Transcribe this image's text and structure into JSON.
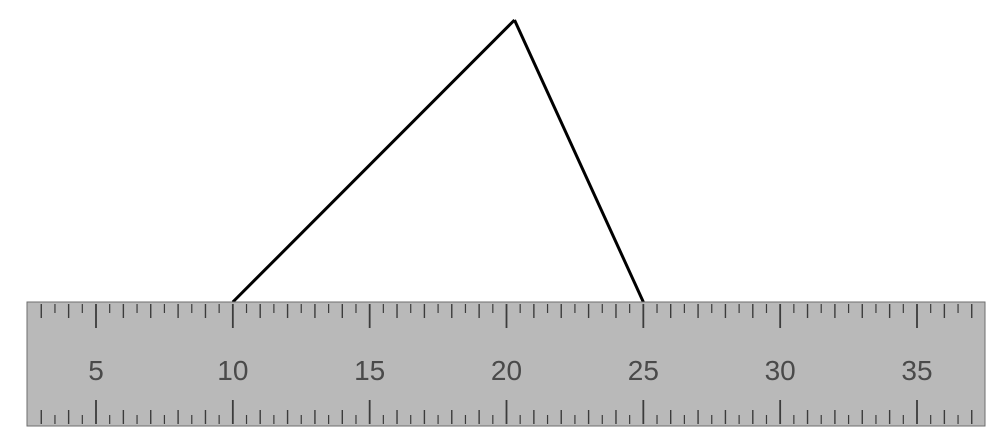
{
  "diagram": {
    "ruler": {
      "labels": [
        "5",
        "10",
        "15",
        "20",
        "25",
        "30",
        "35"
      ],
      "min_value": 0,
      "max_value": 37,
      "label_step": 5,
      "colors": {
        "face": "#b9b9b9",
        "border": "#6e6e6e",
        "tick": "#3c3c3c",
        "label": "#4a4a4a"
      }
    },
    "triangle": {
      "left_base_value": 10,
      "right_base_value": 25,
      "apex_value": 20,
      "stroke_color": "#000000"
    }
  }
}
